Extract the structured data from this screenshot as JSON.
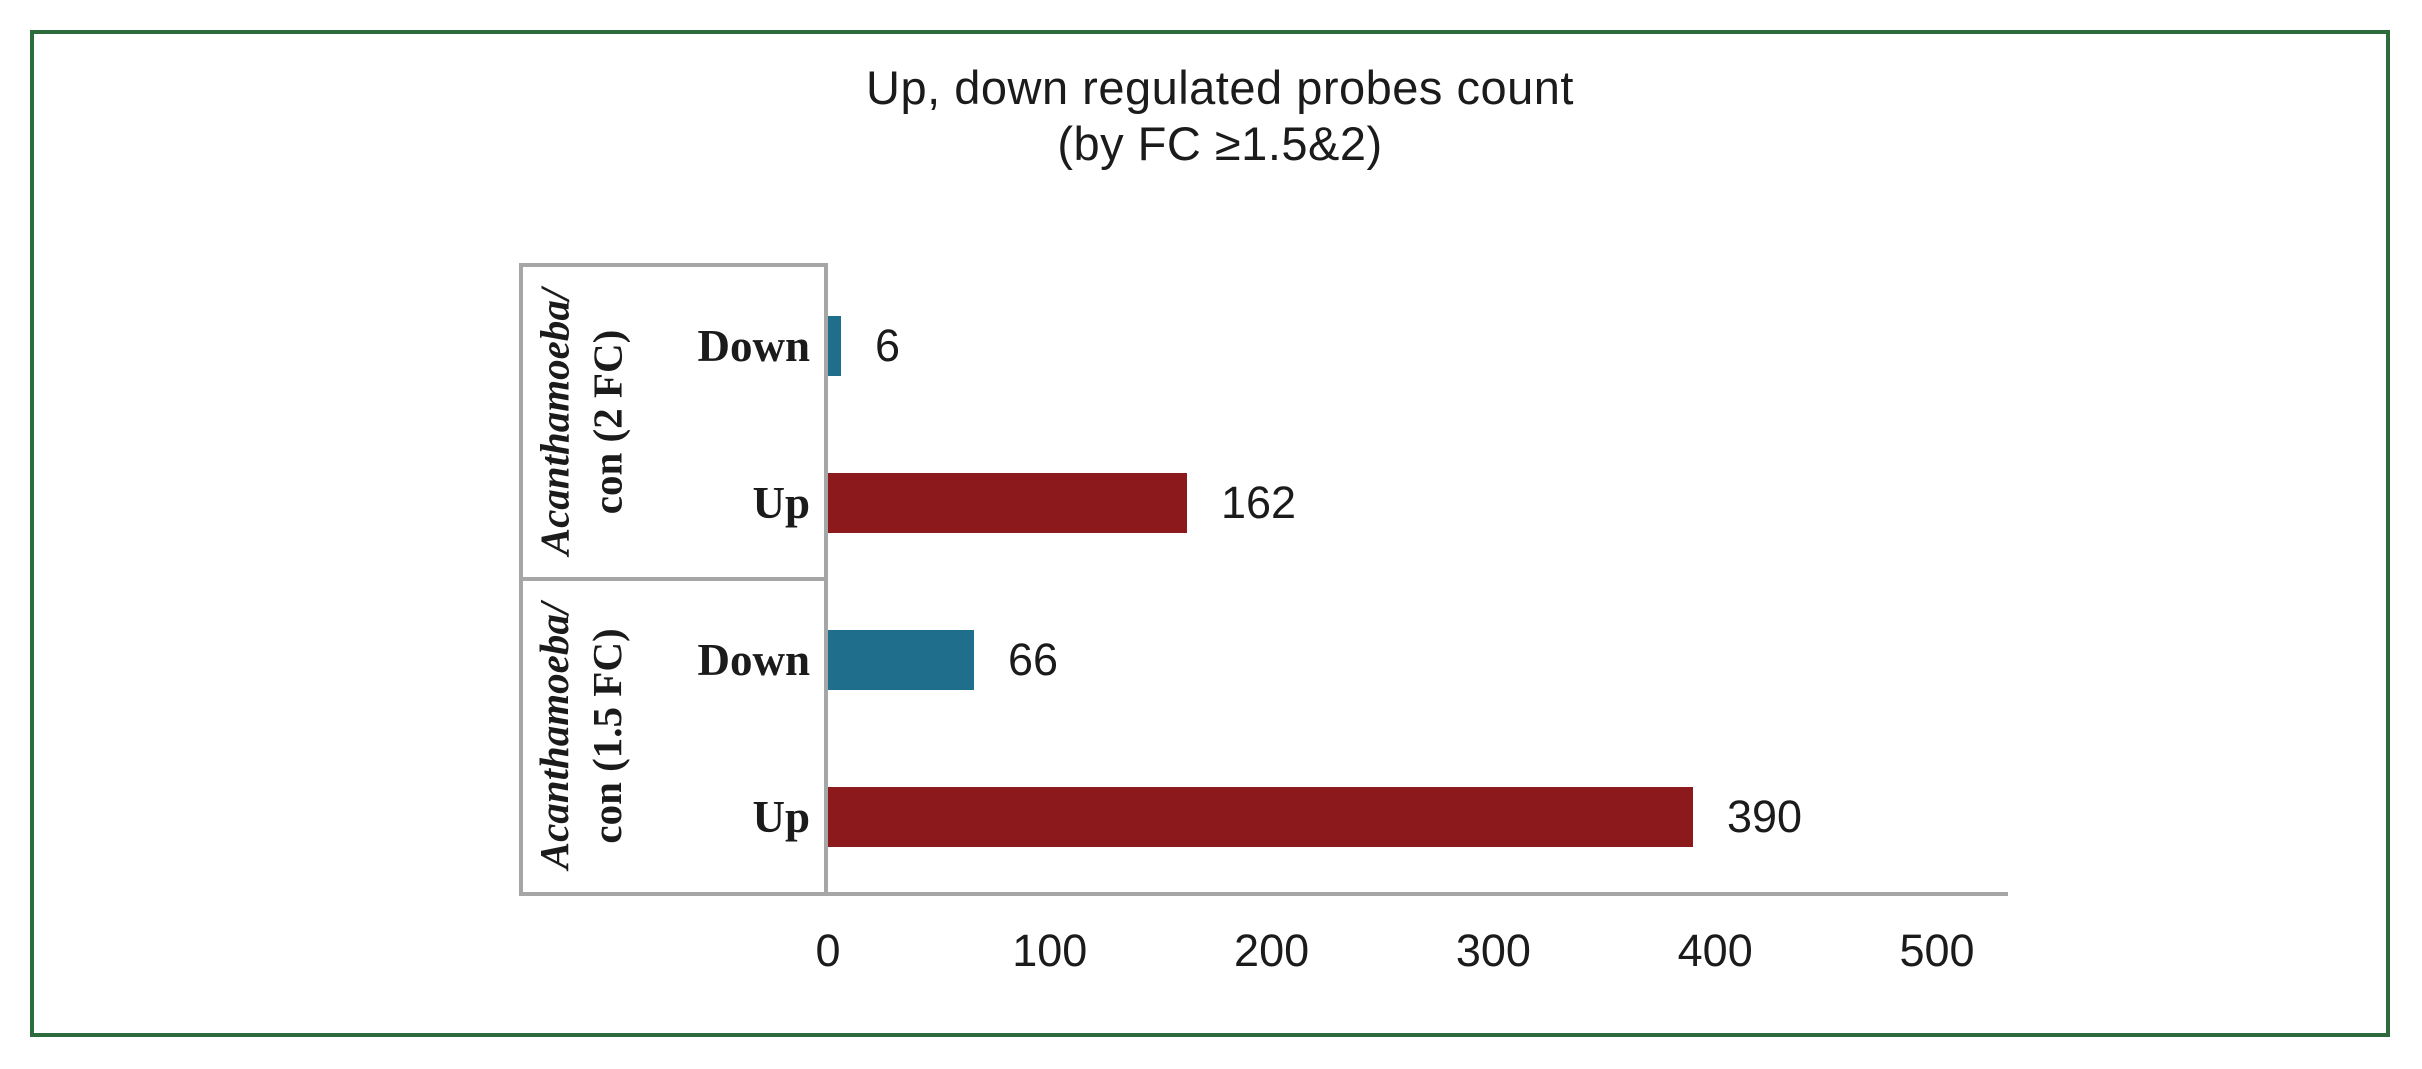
{
  "chart": {
    "title_line1": "Up, down regulated probes count",
    "title_line2": "(by FC ≥1.5&2)"
  },
  "chart_data": {
    "type": "bar",
    "orientation": "horizontal",
    "title": "Up, down regulated probes count (by FC ≥1.5&2)",
    "xlabel": "",
    "ylabel": "",
    "xlim": [
      0,
      500
    ],
    "x_ticks": [
      0,
      100,
      200,
      300,
      400,
      500
    ],
    "grid": false,
    "legend": false,
    "data_labels": true,
    "groups": [
      {
        "label_line1": "Acanthamoeba/",
        "label_line2": "con (2 FC)",
        "rows": [
          {
            "category": "Down",
            "value": 6
          },
          {
            "category": "Up",
            "value": 162
          }
        ]
      },
      {
        "label_line1": "Acanthamoeba/",
        "label_line2": "con (1.5 FC)",
        "rows": [
          {
            "category": "Down",
            "value": 66
          },
          {
            "category": "Up",
            "value": 390
          }
        ]
      }
    ],
    "colors": {
      "down_bar": "#1F6E8C",
      "up_bar": "#8C1A1D",
      "axis_lines": "#A6A6A6",
      "frame_border": "#2D6A3C",
      "text": "#1b1b1b"
    }
  }
}
